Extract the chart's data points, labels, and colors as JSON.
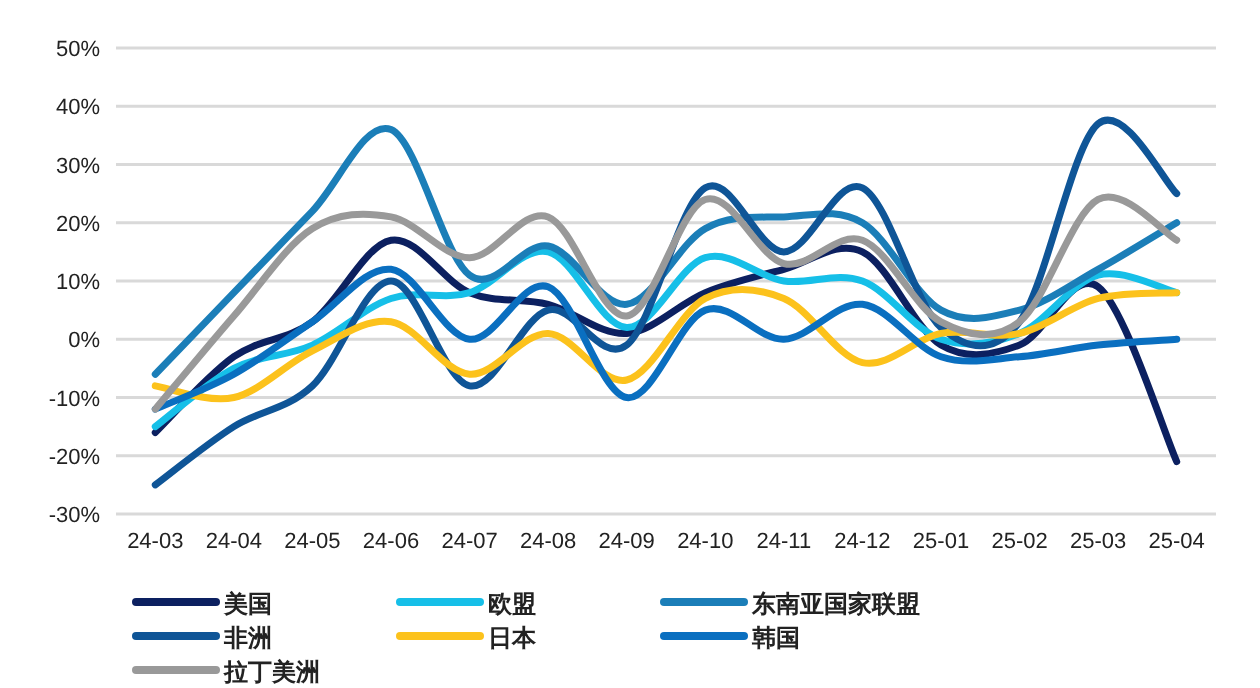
{
  "chart_data": {
    "type": "line",
    "categories": [
      "24-03",
      "24-04",
      "24-05",
      "24-06",
      "24-07",
      "24-08",
      "24-09",
      "24-10",
      "24-11",
      "24-12",
      "25-01",
      "25-02",
      "25-03",
      "25-04"
    ],
    "series": [
      {
        "name": "美国",
        "color": "#0c2060",
        "values": [
          -16,
          -3,
          3,
          17,
          8,
          6,
          1,
          8,
          12,
          15,
          -1,
          -1,
          9,
          -21
        ]
      },
      {
        "name": "欧盟",
        "color": "#16bfe8",
        "values": [
          -15,
          -5,
          -1,
          7,
          8,
          15,
          2,
          14,
          10,
          10,
          0,
          1,
          11,
          8
        ]
      },
      {
        "name": "东南亚国家联盟",
        "color": "#1b7eb8",
        "values": [
          -6,
          8,
          22,
          36,
          11,
          16,
          6,
          19,
          21,
          20,
          5,
          5,
          12,
          20
        ]
      },
      {
        "name": "非洲",
        "color": "#0f5597",
        "values": [
          -25,
          -15,
          -8,
          10,
          -8,
          5,
          -1,
          26,
          15,
          26,
          2,
          3,
          37,
          25
        ]
      },
      {
        "name": "日本",
        "color": "#fcc21c",
        "values": [
          -8,
          -10,
          -2,
          3,
          -6,
          1,
          -7,
          7,
          7,
          -4,
          1,
          1,
          7,
          8
        ]
      },
      {
        "name": "韩国",
        "color": "#0a6fc0",
        "values": [
          -12,
          -6,
          3,
          12,
          0,
          9,
          -10,
          5,
          0,
          6,
          -3,
          -3,
          -1,
          0
        ]
      },
      {
        "name": "拉丁美洲",
        "color": "#999999",
        "values": [
          -12,
          4,
          19,
          21,
          14,
          21,
          4,
          24,
          13,
          17,
          3,
          3,
          24,
          17
        ]
      }
    ],
    "ylim": [
      -30,
      50
    ],
    "yticks": [
      {
        "value": -30,
        "label": "-30%"
      },
      {
        "value": -20,
        "label": "-20%"
      },
      {
        "value": -10,
        "label": "-10%"
      },
      {
        "value": 0,
        "label": "0%"
      },
      {
        "value": 10,
        "label": "10%"
      },
      {
        "value": 20,
        "label": "20%"
      },
      {
        "value": 30,
        "label": "30%"
      },
      {
        "value": 40,
        "label": "40%"
      },
      {
        "value": 50,
        "label": "50%"
      }
    ],
    "grid": "y",
    "legend": "bottom",
    "marker": "none",
    "line_style": "solid"
  }
}
